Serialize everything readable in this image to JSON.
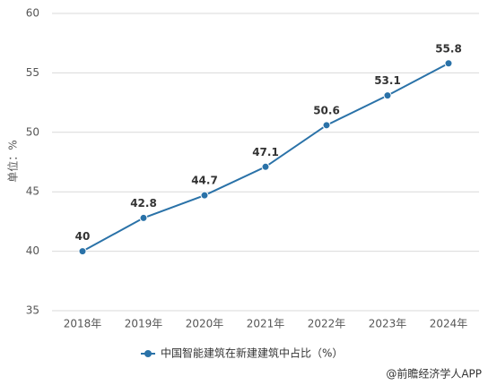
{
  "chart_data": {
    "type": "line",
    "y_label": "单位：%",
    "categories": [
      "2018年",
      "2019年",
      "2020年",
      "2021年",
      "2022年",
      "2023年",
      "2024年"
    ],
    "series": [
      {
        "name": "中国智能建筑在新建建筑中占比（%）",
        "color": "#2a72a8",
        "values": [
          40,
          42.8,
          44.7,
          47.1,
          50.6,
          53.1,
          55.8
        ]
      }
    ],
    "ylim": [
      35,
      60
    ],
    "yticks": [
      35,
      40,
      45,
      50,
      55,
      60
    ],
    "grid": true,
    "legend": "bottom",
    "source": "@前瞻经济学人APP"
  }
}
